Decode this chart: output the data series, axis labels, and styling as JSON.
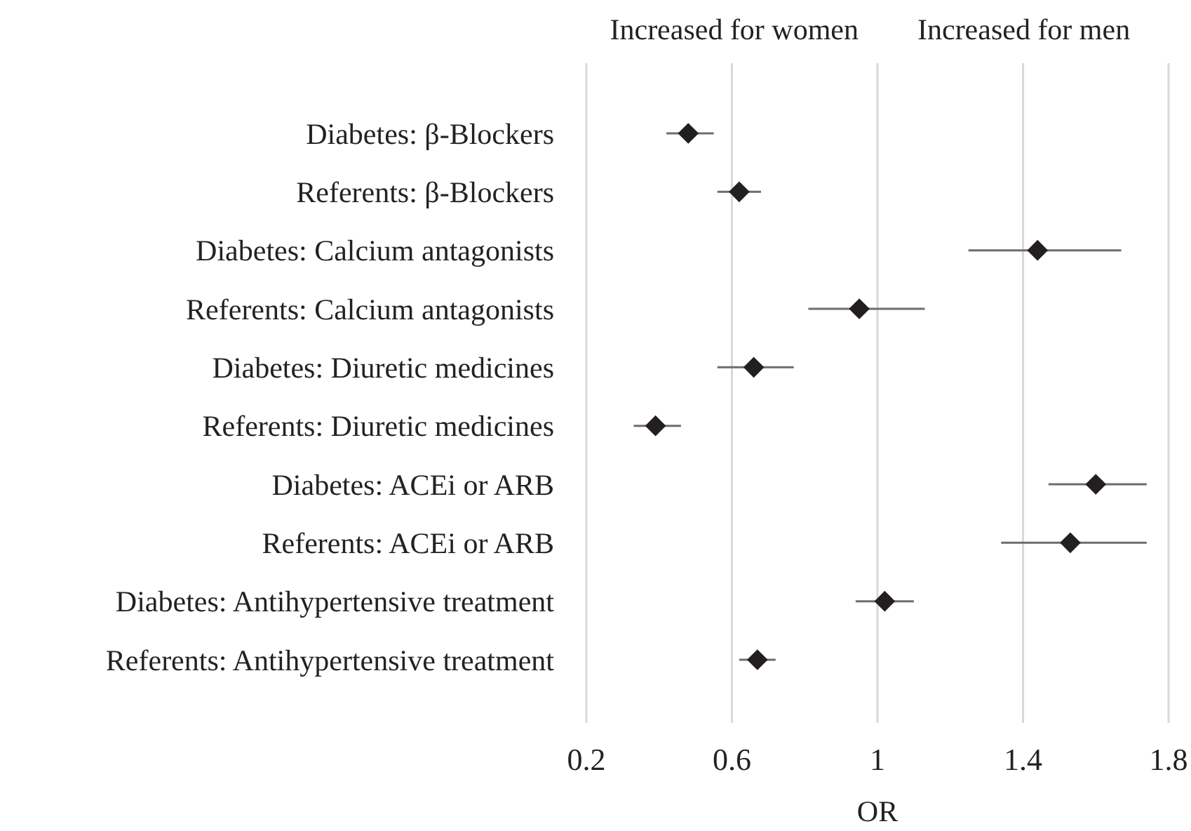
{
  "chart_data": {
    "type": "scatter",
    "orientation": "horizontal",
    "xlabel": "OR",
    "annotations": [
      "Increased for women",
      "Increased for men"
    ],
    "categories": [
      "Diabetes: β-Blockers",
      "Referents: β-Blockers",
      "Diabetes: Calcium antagonists",
      "Referents: Calcium antagonists",
      "Diabetes: Diuretic medicines",
      "Referents: Diuretic medicines",
      "Diabetes: ACEi or ARB",
      "Referents: ACEi or ARB",
      "Diabetes: Antihypertensive treatment",
      "Referents: Antihypertensive treatment"
    ],
    "series": [
      {
        "color": "#231f20",
        "values": [
          0.48,
          0.62,
          1.44,
          0.95,
          0.66,
          0.39,
          1.6,
          1.53,
          1.02,
          0.67
        ],
        "errors": [
          [
            0.42,
            0.55
          ],
          [
            0.56,
            0.68
          ],
          [
            1.25,
            1.67
          ],
          [
            0.81,
            1.13
          ],
          [
            0.56,
            0.77
          ],
          [
            0.33,
            0.46
          ],
          [
            1.47,
            1.74
          ],
          [
            1.34,
            1.74
          ],
          [
            0.94,
            1.1
          ],
          [
            0.62,
            0.72
          ]
        ]
      }
    ],
    "xlim": [
      0.2,
      1.8
    ],
    "xticks": [
      0.2,
      0.6,
      1,
      1.4,
      1.8
    ],
    "grid": "x",
    "marker": "diamond"
  }
}
